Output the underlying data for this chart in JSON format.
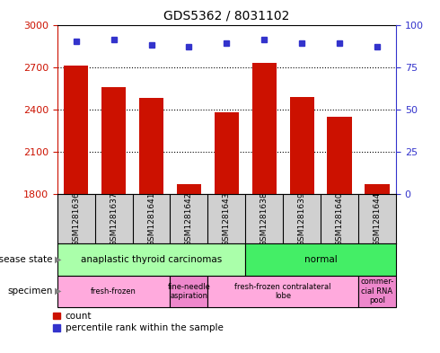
{
  "title": "GDS5362 / 8031102",
  "samples": [
    "GSM1281636",
    "GSM1281637",
    "GSM1281641",
    "GSM1281642",
    "GSM1281643",
    "GSM1281638",
    "GSM1281639",
    "GSM1281640",
    "GSM1281644"
  ],
  "counts": [
    2710,
    2560,
    2480,
    1870,
    2380,
    2730,
    2490,
    2350,
    1870
  ],
  "percentiles": [
    90,
    91,
    88,
    87,
    89,
    91,
    89,
    89,
    87
  ],
  "ylim_left": [
    1800,
    3000
  ],
  "ylim_right": [
    0,
    100
  ],
  "yticks_left": [
    1800,
    2100,
    2400,
    2700,
    3000
  ],
  "yticks_right": [
    0,
    25,
    50,
    75,
    100
  ],
  "bar_color": "#cc1100",
  "dot_color": "#3333cc",
  "bar_width": 0.65,
  "bg_color": "#ffffff",
  "label_bg": "#d0d0d0",
  "n_bars": 9,
  "ds_spans": [
    [
      0,
      5,
      "#aaffaa",
      "anaplastic thyroid carcinomas"
    ],
    [
      5,
      9,
      "#44ee66",
      "normal"
    ]
  ],
  "sp_spans": [
    [
      0,
      3,
      "#ffaadd",
      "fresh-frozen"
    ],
    [
      3,
      4,
      "#ee88cc",
      "fine-needle\naspiration"
    ],
    [
      4,
      8,
      "#ffaadd",
      "fresh-frozen contralateral\nlobe"
    ],
    [
      8,
      9,
      "#ee88cc",
      "commer-\ncial RNA\npool"
    ]
  ],
  "legend_count_label": "count",
  "legend_perc_label": "percentile rank within the sample",
  "disease_state_label": "disease state",
  "specimen_label": "specimen",
  "grid_yticks": [
    2100,
    2400,
    2700
  ]
}
